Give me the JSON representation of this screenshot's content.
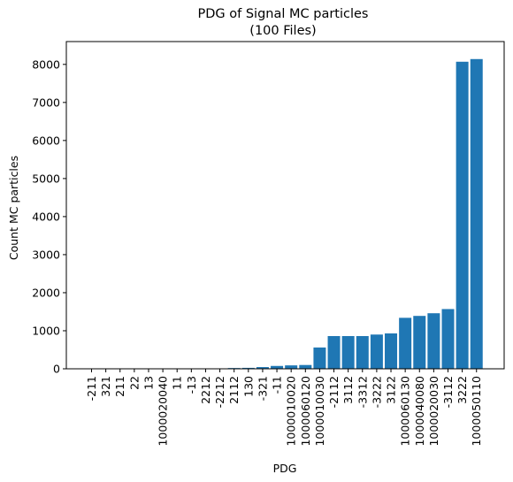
{
  "chart_data": {
    "type": "bar",
    "title": "PDG of Signal MC particles",
    "subtitle": "(100 Files)",
    "xlabel": "PDG",
    "ylabel": "Count MC particles",
    "ylim": [
      0,
      8600
    ],
    "yticks": [
      0,
      1000,
      2000,
      3000,
      4000,
      5000,
      6000,
      7000,
      8000
    ],
    "ytick_labels": [
      "0",
      "1000",
      "2000",
      "3000",
      "4000",
      "5000",
      "6000",
      "7000",
      "8000"
    ],
    "grid": false,
    "bar_color": "#1f77b4",
    "categories": [
      "-211",
      "321",
      "211",
      "22",
      "13",
      "1000020040",
      "11",
      "-13",
      "2212",
      "-2212",
      "2112",
      "130",
      "-321",
      "-11",
      "1000010020",
      "1000060120",
      "1000010030",
      "-2112",
      "3112",
      "-3312",
      "-3222",
      "3122",
      "1000060130",
      "1000040080",
      "1000020030",
      "-3112",
      "3222",
      "1000050110"
    ],
    "values": [
      0,
      0,
      0,
      0,
      0,
      0,
      0,
      0,
      0,
      0,
      20,
      25,
      45,
      75,
      90,
      100,
      560,
      860,
      860,
      860,
      900,
      930,
      1340,
      1390,
      1460,
      1570,
      8070,
      8140
    ]
  }
}
